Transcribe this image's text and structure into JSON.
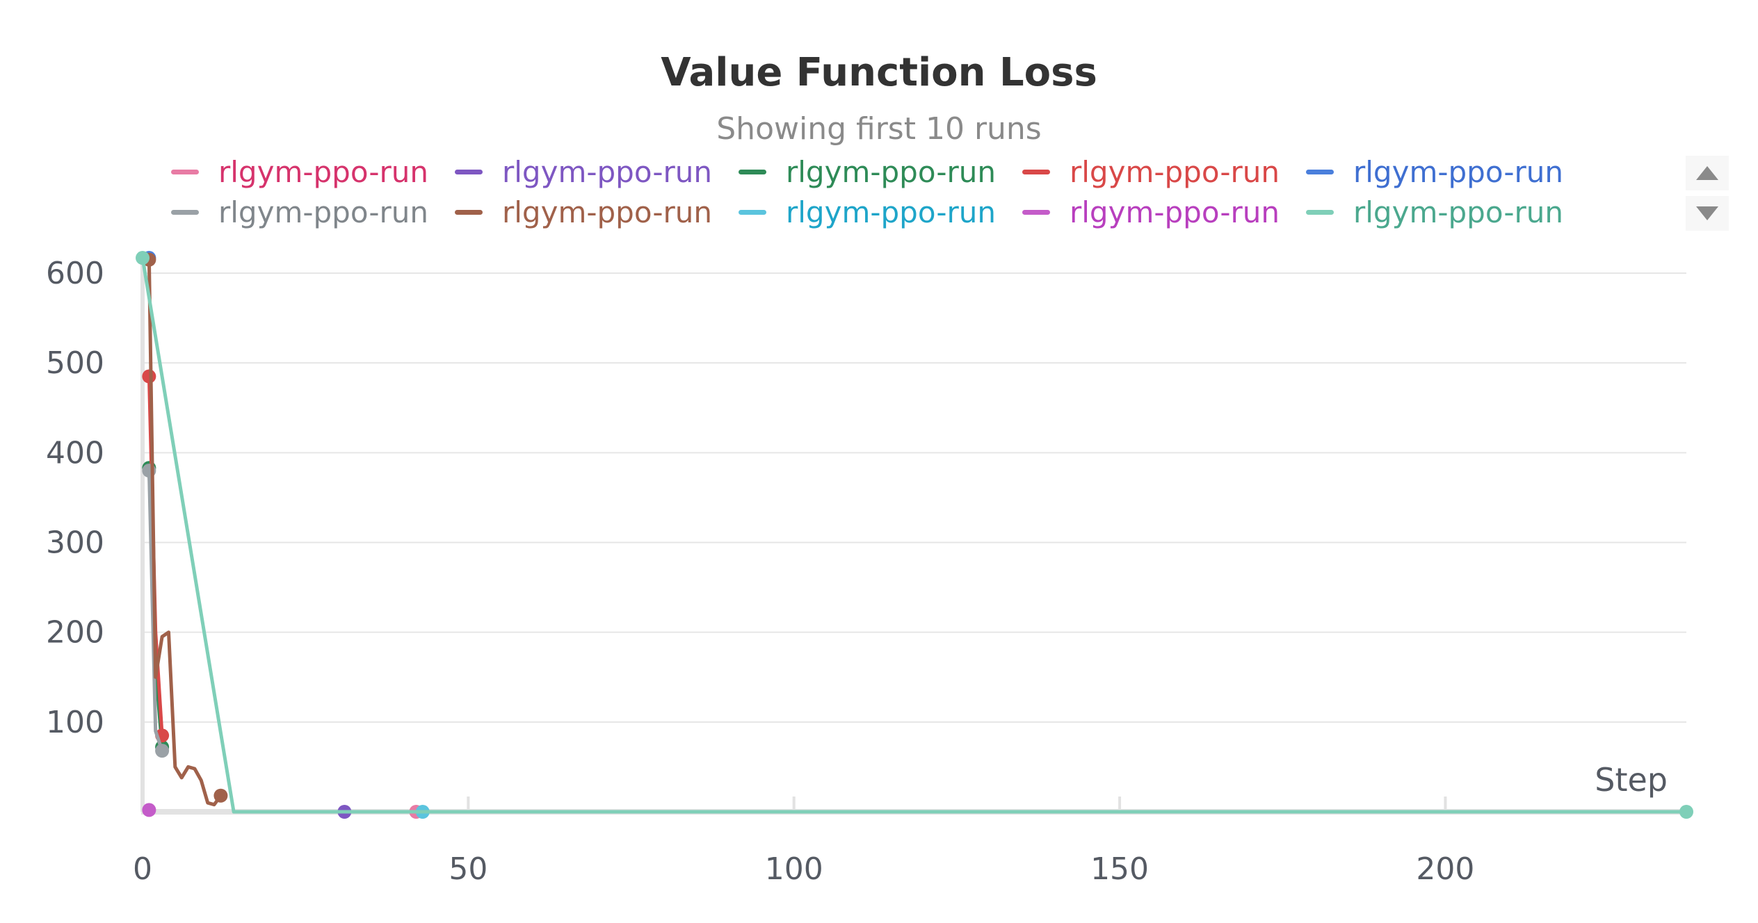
{
  "chart_data": {
    "type": "line",
    "title": "Value Function Loss",
    "subtitle": "Showing first 10 runs",
    "xlabel": "Step",
    "ylabel": "",
    "xlim": [
      0,
      237
    ],
    "ylim": [
      0,
      600
    ],
    "grid": true,
    "legend_placement": "top",
    "x_ticks": [
      0,
      50,
      100,
      150,
      200
    ],
    "x_tick_labels": [
      "0",
      "50",
      "100",
      "150",
      "200"
    ],
    "y_ticks": [
      100,
      200,
      300,
      400,
      500,
      600
    ],
    "y_tick_labels": [
      "100",
      "200",
      "300",
      "400",
      "500",
      "600"
    ],
    "series": [
      {
        "name": "rlgym-ppo-run",
        "color": "#e87ba4",
        "label_color": "#d6336c",
        "points": [
          [
            42,
            0
          ]
        ]
      },
      {
        "name": "rlgym-ppo-run",
        "color": "#7e57c2",
        "label_color": "#7e57c2",
        "points": [
          [
            31,
            0
          ]
        ]
      },
      {
        "name": "rlgym-ppo-run",
        "color": "#2e8b57",
        "label_color": "#2e8b57",
        "points": [
          [
            1,
            383
          ],
          [
            2,
            160
          ],
          [
            3,
            72
          ]
        ]
      },
      {
        "name": "rlgym-ppo-run",
        "color": "#d94848",
        "label_color": "#d94848",
        "points": [
          [
            1,
            485
          ],
          [
            2,
            200
          ],
          [
            3,
            85
          ]
        ]
      },
      {
        "name": "rlgym-ppo-run",
        "color": "#4a7fdc",
        "label_color": "#3f6fd1",
        "points": [
          [
            1,
            617
          ]
        ]
      },
      {
        "name": "rlgym-ppo-run",
        "color": "#9aa1a6",
        "label_color": "#80868b",
        "points": [
          [
            1,
            380
          ],
          [
            2,
            90
          ],
          [
            3,
            68
          ]
        ]
      },
      {
        "name": "rlgym-ppo-run",
        "color": "#a0614a",
        "label_color": "#a0614a",
        "points": [
          [
            1,
            615
          ],
          [
            2,
            150
          ],
          [
            3,
            195
          ],
          [
            4,
            200
          ],
          [
            5,
            50
          ],
          [
            6,
            38
          ],
          [
            7,
            50
          ],
          [
            8,
            48
          ],
          [
            9,
            35
          ],
          [
            10,
            10
          ],
          [
            11,
            8
          ],
          [
            12,
            18
          ]
        ]
      },
      {
        "name": "rlgym-ppo-run",
        "color": "#5bc4de",
        "label_color": "#1ea5c9",
        "points": [
          [
            43,
            0
          ]
        ]
      },
      {
        "name": "rlgym-ppo-run",
        "color": "#c45cc9",
        "label_color": "#b83fbe",
        "points": [
          [
            1,
            2
          ]
        ]
      },
      {
        "name": "rlgym-ppo-run",
        "color": "#7fcfb8",
        "label_color": "#4ba88e",
        "points": [
          [
            0,
            617
          ],
          [
            14,
            0
          ],
          [
            237,
            0
          ]
        ]
      }
    ]
  },
  "legend_controls": {
    "up_icon": "triangle-up-icon",
    "down_icon": "triangle-down-icon"
  }
}
